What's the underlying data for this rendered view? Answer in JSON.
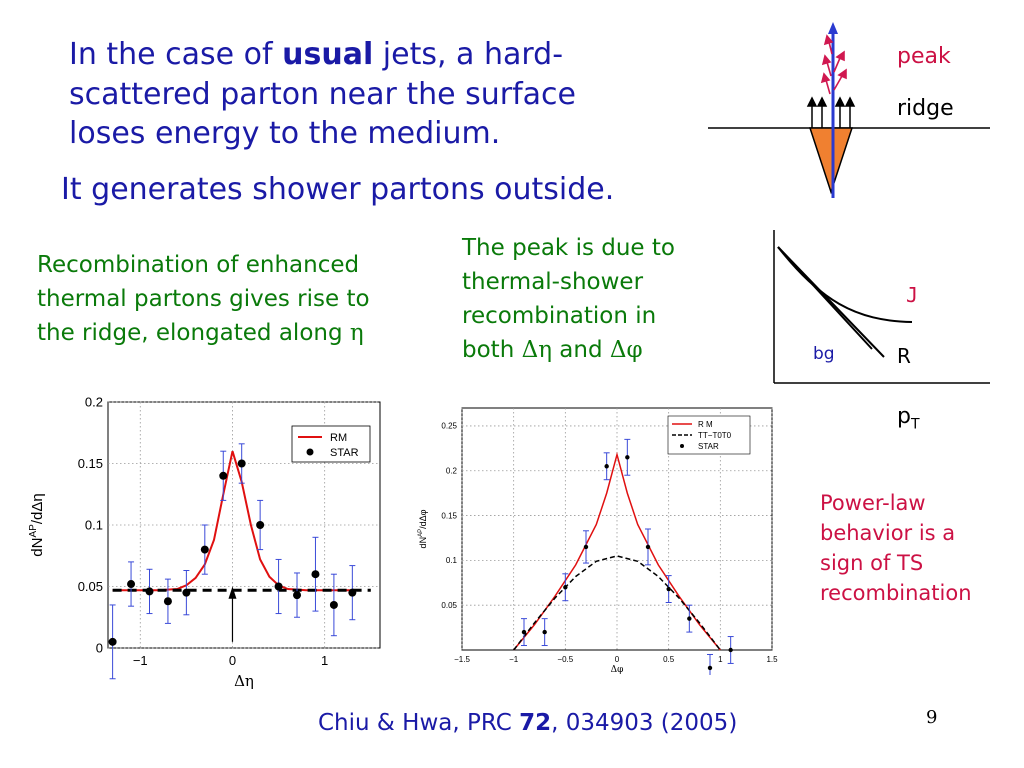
{
  "slide": {
    "intro": {
      "line1_pre": "In the case of ",
      "line1_bold": "usual",
      "line1_post": " jets, a hard-",
      "line2": "scattered parton near the surface",
      "line3": "loses energy to the medium.",
      "line4": "It generates shower partons outside."
    },
    "left_note": {
      "line1": "Recombination of enhanced",
      "line2": "thermal partons gives rise to",
      "line3_pre": "the ridge, elongated along ",
      "line3_sym": "η"
    },
    "mid_note": {
      "line1": "The peak is due to",
      "line2": "thermal-shower",
      "line3": "recombination in",
      "line4_a": "both ",
      "line4_b": "Δη",
      "line4_c": " and ",
      "line4_d": "Δφ"
    },
    "right_note": {
      "line1": "Power-law",
      "line2": "behavior is a",
      "line3": "sign of TS",
      "line4": "recombination"
    },
    "diagram": {
      "peak_label": "peak",
      "ridge_label": "ridge"
    },
    "spectrum": {
      "j_label": "J",
      "bg_label": "bg",
      "r_label": "R",
      "pt_label": "p",
      "pt_sub": "T"
    },
    "citation": {
      "pre": "Chiu & Hwa, PRC ",
      "bold": "72",
      "post": ", 034903 (2005)"
    },
    "page_number": "9"
  },
  "chart_data": [
    {
      "type": "scatter",
      "title": "",
      "xlabel": "Δη",
      "ylabel": "dN^AP/dΔη",
      "xlim": [
        -1.35,
        1.6
      ],
      "ylim": [
        0,
        0.2
      ],
      "xticks": [
        "−1",
        "0",
        "1"
      ],
      "yticks": [
        "0",
        "0.05",
        "0.1",
        "0.15",
        "0.2"
      ],
      "grid": true,
      "legend_position": "top-right",
      "legend": [
        "RM",
        "STAR"
      ],
      "series": [
        {
          "name": "RM",
          "style": "red-line",
          "x": [
            -1.3,
            -1.0,
            -0.8,
            -0.6,
            -0.5,
            -0.4,
            -0.3,
            -0.2,
            -0.1,
            0.0,
            0.1,
            0.2,
            0.3,
            0.4,
            0.5,
            0.6,
            0.8,
            1.0,
            1.3
          ],
          "y": [
            0.047,
            0.047,
            0.047,
            0.048,
            0.051,
            0.057,
            0.068,
            0.088,
            0.125,
            0.16,
            0.135,
            0.1,
            0.072,
            0.058,
            0.051,
            0.048,
            0.047,
            0.047,
            0.047
          ]
        },
        {
          "name": "",
          "style": "black-dashed",
          "x": [
            -1.3,
            1.5
          ],
          "y": [
            0.047,
            0.047
          ]
        },
        {
          "name": "STAR",
          "style": "dots",
          "x": [
            -1.3,
            -1.1,
            -0.9,
            -0.7,
            -0.5,
            -0.3,
            -0.1,
            0.1,
            0.3,
            0.5,
            0.7,
            0.9,
            1.1,
            1.3
          ],
          "y": [
            0.005,
            0.052,
            0.046,
            0.038,
            0.045,
            0.08,
            0.14,
            0.15,
            0.1,
            0.05,
            0.043,
            0.06,
            0.035,
            0.045
          ],
          "err": [
            0.03,
            0.018,
            0.018,
            0.018,
            0.018,
            0.02,
            0.02,
            0.016,
            0.02,
            0.022,
            0.018,
            0.03,
            0.025,
            0.022
          ]
        }
      ]
    },
    {
      "type": "scatter",
      "title": "",
      "xlabel": "Δφ",
      "ylabel": "dN^AP/dΔφ",
      "xlim": [
        -1.5,
        1.5
      ],
      "ylim": [
        0,
        0.27
      ],
      "xticks": [
        "−1.5",
        "−1",
        "−0.5",
        "0",
        "0.5",
        "1",
        "1.5"
      ],
      "yticks": [
        "0.05",
        "0.1",
        "0.15",
        "0.2",
        "0.25"
      ],
      "grid": true,
      "legend_position": "top-right",
      "legend": [
        "R M",
        "TT−T0T0",
        "STAR"
      ],
      "series": [
        {
          "name": "R M",
          "style": "red-line",
          "x": [
            -1.0,
            -0.8,
            -0.6,
            -0.4,
            -0.2,
            -0.1,
            0.0,
            0.1,
            0.2,
            0.4,
            0.6,
            0.8,
            1.0
          ],
          "y": [
            0.0,
            0.028,
            0.06,
            0.095,
            0.14,
            0.175,
            0.218,
            0.175,
            0.14,
            0.095,
            0.06,
            0.028,
            0.0
          ]
        },
        {
          "name": "TT−T0T0",
          "style": "black-dashed",
          "x": [
            -1.0,
            -0.8,
            -0.6,
            -0.4,
            -0.2,
            0.0,
            0.2,
            0.4,
            0.6,
            0.8,
            1.0
          ],
          "y": [
            0.0,
            0.03,
            0.058,
            0.082,
            0.099,
            0.105,
            0.099,
            0.082,
            0.058,
            0.03,
            0.0
          ]
        },
        {
          "name": "STAR",
          "style": "dots",
          "x": [
            -0.9,
            -0.7,
            -0.5,
            -0.3,
            -0.1,
            0.1,
            0.3,
            0.5,
            0.7,
            0.9,
            1.1
          ],
          "y": [
            0.02,
            0.02,
            0.07,
            0.115,
            0.205,
            0.215,
            0.115,
            0.068,
            0.035,
            -0.02,
            0.0
          ],
          "err": [
            0.015,
            0.015,
            0.015,
            0.018,
            0.015,
            0.02,
            0.02,
            0.015,
            0.015,
            0.015,
            0.015
          ]
        }
      ]
    }
  ]
}
